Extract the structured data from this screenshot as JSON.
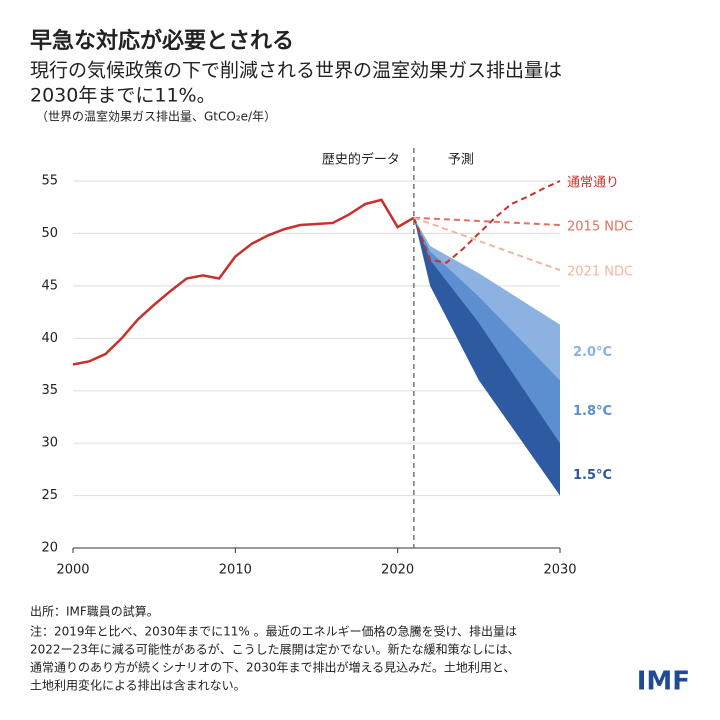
{
  "chart_data": {
    "type": "line",
    "title": "早急な対応が必要とされる",
    "subtitle": [
      "現行の気候政策の下で削減される世界の温室効果ガス排出量は",
      "2030年までに11%。"
    ],
    "ylabel": "（世界の温室効果ガス排出量、GtCO₂e/年）",
    "annotations": [
      "歴史的データ",
      "予測"
    ],
    "divider_x": 2021,
    "xlim": [
      2000,
      2030
    ],
    "xticks": [
      2000,
      2010,
      2020,
      2030
    ],
    "ylim": [
      20,
      55
    ],
    "yticks": [
      20,
      25,
      30,
      35,
      40,
      45,
      50,
      55
    ],
    "grid": true,
    "series": [
      {
        "color": "#c8312b",
        "dash": false,
        "x": [
          2000,
          2001,
          2002,
          2003,
          2004,
          2005,
          2006,
          2007,
          2008,
          2009,
          2010,
          2011,
          2012,
          2013,
          2014,
          2015,
          2016,
          2017,
          2018,
          2019,
          2020,
          2021
        ],
        "values": [
          37.5,
          37.8,
          38.5,
          40,
          41.8,
          43.2,
          44.5,
          45.7,
          46,
          45.7,
          47.8,
          49,
          49.8,
          50.4,
          50.8,
          50.9,
          51,
          51.8,
          52.8,
          53.2,
          50.6,
          51.5
        ]
      },
      {
        "name": "通常通り",
        "color": "#c8312b",
        "dash": true,
        "x": [
          2021,
          2022,
          2023,
          2024,
          2025,
          2026,
          2027,
          2028,
          2029,
          2030
        ],
        "values": [
          51.5,
          47.5,
          47.2,
          48.5,
          50,
          51.5,
          52.8,
          53.5,
          54.3,
          55
        ]
      },
      {
        "name": "2015 NDC",
        "color": "#e07060",
        "dash": true,
        "x": [
          2021,
          2030
        ],
        "values": [
          51.5,
          50.8
        ]
      },
      {
        "name": "2021 NDC",
        "color": "#f2b5a0",
        "dash": true,
        "x": [
          2021,
          2030
        ],
        "values": [
          51.5,
          46.5
        ]
      }
    ],
    "bands": [
      {
        "name": "2.0°C",
        "color": "#8cb2e2",
        "x": [
          2021,
          2022,
          2025,
          2030
        ],
        "upper": [
          51.5,
          48.8,
          46.2,
          41.3
        ],
        "lower": [
          51.5,
          48.3,
          44,
          36
        ]
      },
      {
        "name": "1.8°C",
        "color": "#5b8fcf",
        "x": [
          2021,
          2022,
          2025,
          2030
        ],
        "upper": [
          51.5,
          48.3,
          44,
          36
        ],
        "lower": [
          51.5,
          47.5,
          41.5,
          30
        ]
      },
      {
        "name": "1.5°C",
        "color": "#2d5aa0",
        "x": [
          2021,
          2022,
          2025,
          2030
        ],
        "upper": [
          51.5,
          47.5,
          41.5,
          30
        ],
        "lower": [
          51.5,
          45,
          36,
          25
        ]
      }
    ]
  },
  "footer": {
    "source": "出所：IMF職員の試算。",
    "note": [
      "注：2019年と比べ、2030年までに11% 。最近のエネルギー価格の急騰を受け、排出量は",
      "2022ー23年に減る可能性があるが、こうした展開は定かでない。新たな緩和策なしには、",
      "通常通りのあり方が続くシナリオの下、2030年まで排出が増える見込みだ。土地利用と、",
      "土地利用変化による排出は含まれない。"
    ],
    "logo": "IMF"
  }
}
